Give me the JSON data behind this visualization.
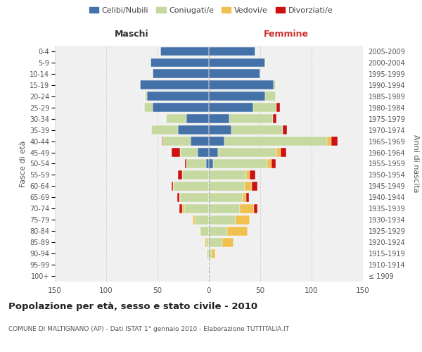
{
  "age_groups": [
    "100+",
    "95-99",
    "90-94",
    "85-89",
    "80-84",
    "75-79",
    "70-74",
    "65-69",
    "60-64",
    "55-59",
    "50-54",
    "45-49",
    "40-44",
    "35-39",
    "30-34",
    "25-29",
    "20-24",
    "15-19",
    "10-14",
    "5-9",
    "0-4"
  ],
  "birth_years": [
    "≤ 1909",
    "1910-1914",
    "1915-1919",
    "1920-1924",
    "1925-1929",
    "1930-1934",
    "1935-1939",
    "1940-1944",
    "1945-1949",
    "1950-1954",
    "1955-1959",
    "1960-1964",
    "1965-1969",
    "1970-1974",
    "1975-1979",
    "1980-1984",
    "1985-1989",
    "1990-1994",
    "1995-1999",
    "2000-2004",
    "2005-2009"
  ],
  "male": {
    "celibe": [
      0,
      0,
      0,
      0,
      0,
      0,
      0,
      0,
      0,
      0,
      3,
      11,
      18,
      30,
      22,
      55,
      60,
      67,
      55,
      57,
      47
    ],
    "coniugato": [
      0,
      0,
      2,
      3,
      8,
      14,
      24,
      28,
      34,
      26,
      19,
      17,
      27,
      26,
      20,
      8,
      2,
      0,
      0,
      0,
      0
    ],
    "vedovo": [
      0,
      0,
      0,
      1,
      1,
      2,
      2,
      1,
      1,
      0,
      0,
      0,
      0,
      0,
      0,
      0,
      0,
      0,
      0,
      0,
      0
    ],
    "divorziato": [
      0,
      0,
      0,
      0,
      0,
      0,
      3,
      2,
      1,
      4,
      1,
      8,
      1,
      0,
      0,
      0,
      0,
      0,
      0,
      0,
      0
    ]
  },
  "female": {
    "nubile": [
      0,
      0,
      0,
      0,
      0,
      0,
      0,
      0,
      0,
      0,
      4,
      9,
      15,
      22,
      20,
      43,
      55,
      63,
      50,
      55,
      45
    ],
    "coniugata": [
      0,
      1,
      3,
      13,
      18,
      26,
      30,
      33,
      35,
      36,
      53,
      57,
      100,
      50,
      42,
      23,
      10,
      2,
      0,
      0,
      0
    ],
    "vedova": [
      0,
      0,
      3,
      11,
      20,
      14,
      14,
      3,
      7,
      4,
      4,
      4,
      4,
      0,
      0,
      0,
      0,
      0,
      0,
      0,
      0
    ],
    "divorziata": [
      0,
      0,
      0,
      0,
      0,
      0,
      3,
      3,
      5,
      5,
      4,
      5,
      6,
      4,
      4,
      3,
      0,
      0,
      0,
      0,
      0
    ]
  },
  "colors": {
    "celibe": "#4472a8",
    "coniugato": "#c5d9a0",
    "vedovo": "#f0c050",
    "divorziato": "#cc1111"
  },
  "title": "Popolazione per età, sesso e stato civile - 2010",
  "subtitle": "COMUNE DI MALTIGNANO (AP) - Dati ISTAT 1° gennaio 2010 - Elaborazione TUTTITALIA.IT",
  "label_maschi": "Maschi",
  "label_femmine": "Femmine",
  "ylabel_left": "Fasce di età",
  "ylabel_right": "Anni di nascita",
  "legend_labels": [
    "Celibi/Nubili",
    "Coniugati/e",
    "Vedovi/e",
    "Divorziati/e"
  ],
  "xlim": 150,
  "bg_color": "#ffffff",
  "plot_bg": "#f0f0f0",
  "grid_color": "#cccccc"
}
